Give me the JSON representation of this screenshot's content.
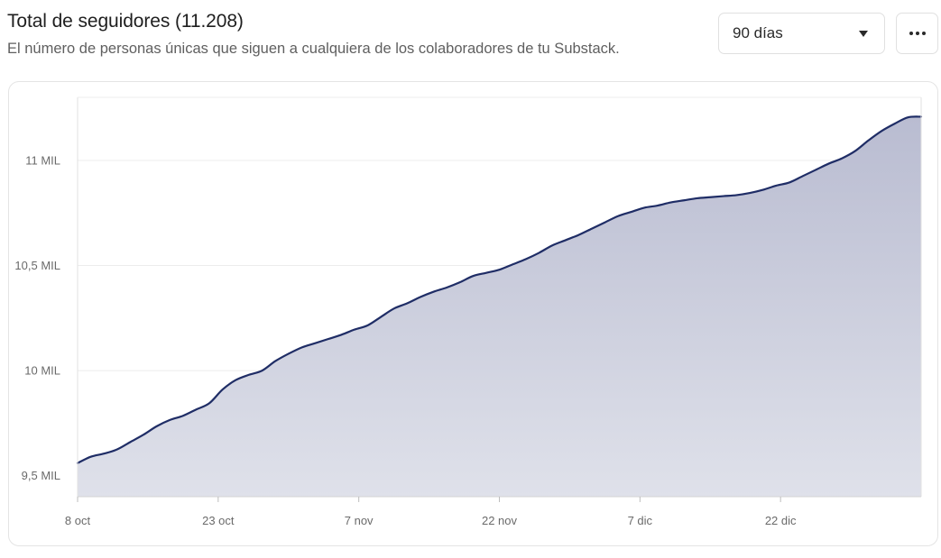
{
  "header": {
    "title": "Total de seguidores (11.208)",
    "subtitle": "El número de personas únicas que siguen a cualquiera de los colaboradores de tu Substack."
  },
  "controls": {
    "range_label": "90 días",
    "more_icon": "more-horizontal-icon"
  },
  "colors": {
    "line": "#1f2d66",
    "area_top": "#b9bcd1",
    "area_bottom": "#dfe1ea",
    "grid": "#ececec"
  },
  "chart_data": {
    "type": "area",
    "title": "Total de seguidores (11.208)",
    "xlabel": "",
    "ylabel": "",
    "x_ticks": [
      "8 oct",
      "23 oct",
      "7 nov",
      "22 nov",
      "7 dic",
      "22 dic"
    ],
    "y_ticks": [
      {
        "value": 9500,
        "label": "9,5 MIL"
      },
      {
        "value": 10000,
        "label": "10 MIL"
      },
      {
        "value": 10500,
        "label": "10,5 MIL"
      },
      {
        "value": 11000,
        "label": "11 MIL"
      }
    ],
    "x_range": [
      "8 oct",
      "6 ene"
    ],
    "ylim": [
      9400,
      11300
    ],
    "grid": true,
    "legend": "none",
    "series": [
      {
        "values": [
          9560,
          9590,
          9605,
          9625,
          9660,
          9695,
          9735,
          9765,
          9785,
          9815,
          9845,
          9910,
          9955,
          9980,
          10000,
          10045,
          10080,
          10110,
          10130,
          10150,
          10170,
          10195,
          10215,
          10255,
          10295,
          10320,
          10350,
          10375,
          10395,
          10420,
          10450,
          10465,
          10480,
          10505,
          10530,
          10560,
          10595,
          10620,
          10645,
          10675,
          10705,
          10735,
          10755,
          10775,
          10785,
          10800,
          10810,
          10820,
          10825,
          10830,
          10835,
          10845,
          10860,
          10880,
          10895,
          10925,
          10955,
          10985,
          11010,
          11045,
          11095,
          11140,
          11175,
          11205,
          11208
        ]
      }
    ]
  }
}
